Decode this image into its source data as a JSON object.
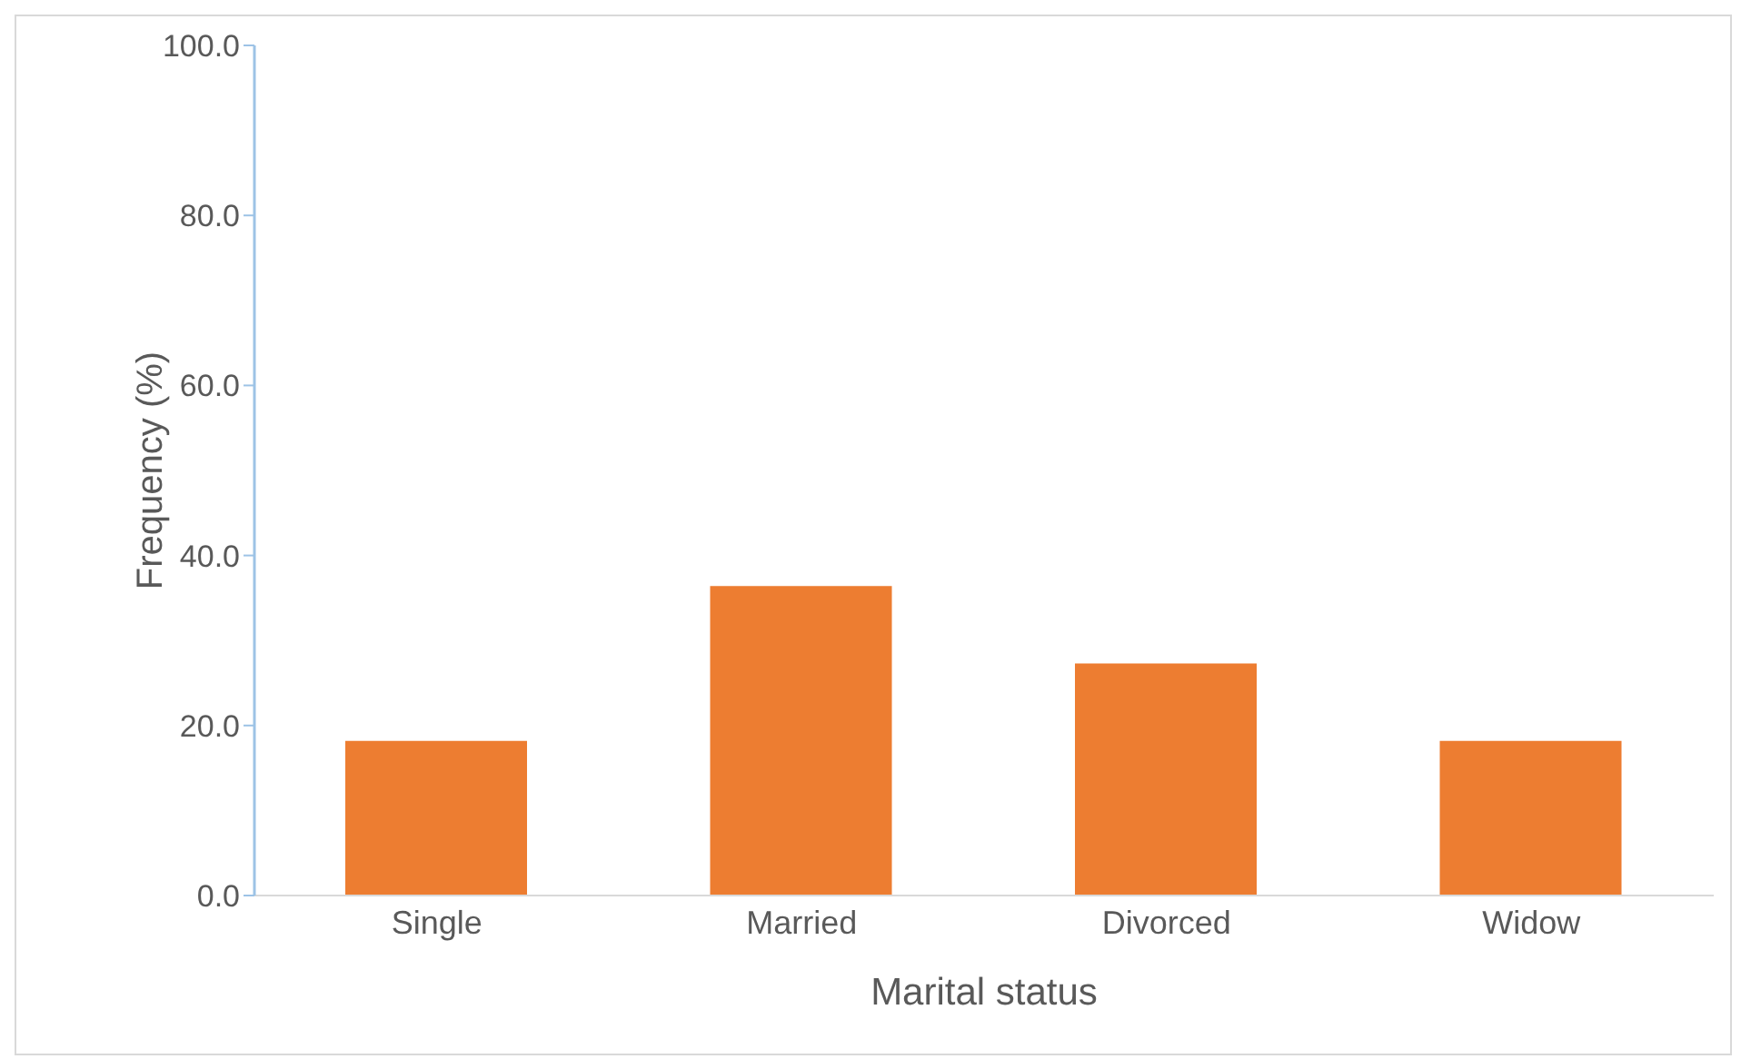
{
  "chart_data": {
    "type": "bar",
    "xlabel": "Marital status",
    "ylabel": "Frequency (%)",
    "categories": [
      "Single",
      "Married",
      "Divorced",
      "Widow"
    ],
    "values": [
      18.2,
      36.4,
      27.3,
      18.2
    ],
    "color": "#ed7d31",
    "ylim": [
      0,
      100
    ],
    "yticks": [
      {
        "value": 0,
        "label": "0.0"
      },
      {
        "value": 20,
        "label": "20.0"
      },
      {
        "value": 40,
        "label": "40.0"
      },
      {
        "value": 60,
        "label": "60.0"
      },
      {
        "value": 80,
        "label": "80.0"
      },
      {
        "value": 100,
        "label": "100.0"
      }
    ],
    "grid": false,
    "legend": false
  }
}
